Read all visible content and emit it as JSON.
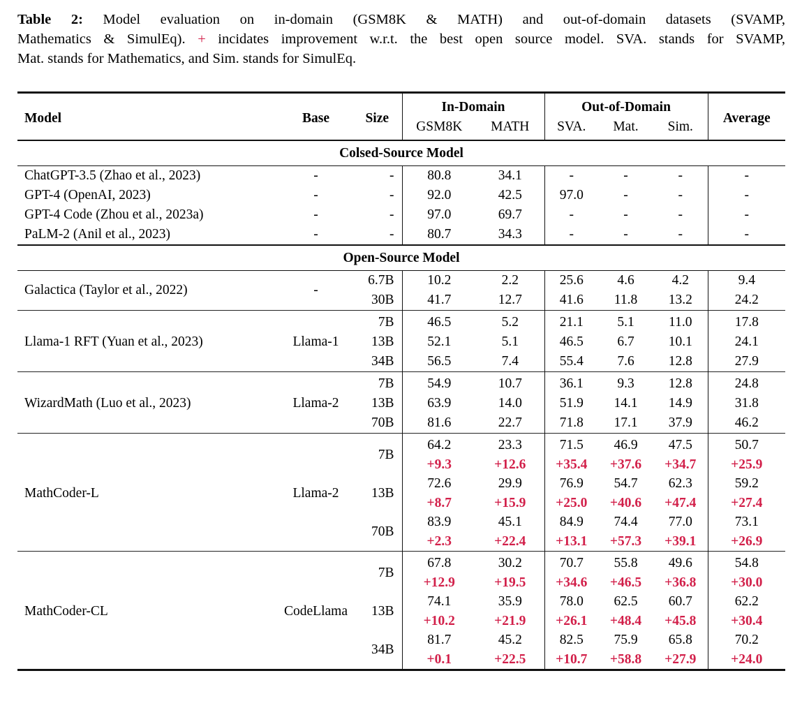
{
  "colors": {
    "improvement": "#d2204a",
    "text": "#000000",
    "rule": "#111111"
  },
  "caption": {
    "label": "Table 2:",
    "line1_rest": "Model evaluation on in-domain (GSM8K & MATH) and out-of-domain datasets (SVAMP,",
    "line2_pre": "Mathematics & SimulEq).",
    "plus": "+",
    "line2_post": "incidates improvement w.r.t. the best open source model. SVA. stands for SVAMP,",
    "line3": "Mat. stands for Mathematics, and Sim. stands for SimulEq."
  },
  "table": {
    "headers": {
      "model": "Model",
      "base": "Base",
      "size": "Size",
      "in_domain": "In-Domain",
      "out_of_domain": "Out-of-Domain",
      "average": "Average",
      "sub": [
        "GSM8K",
        "MATH",
        "SVA.",
        "Mat.",
        "Sim."
      ]
    },
    "sections": [
      {
        "title": "Colsed-Source Model",
        "separators": false,
        "groups": [
          {
            "model": "ChatGPT-3.5 (Zhao et al., 2023)",
            "base": "-",
            "rows": [
              {
                "size": "-",
                "values": [
                  "80.8",
                  "34.1",
                  "-",
                  "-",
                  "-",
                  "-"
                ]
              }
            ]
          },
          {
            "model": "GPT-4 (OpenAI, 2023)",
            "base": "-",
            "rows": [
              {
                "size": "-",
                "values": [
                  "92.0",
                  "42.5",
                  "97.0",
                  "-",
                  "-",
                  "-"
                ]
              }
            ]
          },
          {
            "model": "GPT-4 Code (Zhou et al., 2023a)",
            "base": "-",
            "rows": [
              {
                "size": "-",
                "values": [
                  "97.0",
                  "69.7",
                  "-",
                  "-",
                  "-",
                  "-"
                ]
              }
            ]
          },
          {
            "model": "PaLM-2 (Anil et al., 2023)",
            "base": "-",
            "rows": [
              {
                "size": "-",
                "values": [
                  "80.7",
                  "34.3",
                  "-",
                  "-",
                  "-",
                  "-"
                ]
              }
            ]
          }
        ]
      },
      {
        "title": "Open-Source Model",
        "separators": true,
        "groups": [
          {
            "model": "Galactica (Taylor et al., 2022)",
            "base": "-",
            "rows": [
              {
                "size": "6.7B",
                "values": [
                  "10.2",
                  "2.2",
                  "25.6",
                  "4.6",
                  "4.2",
                  "9.4"
                ]
              },
              {
                "size": "30B",
                "values": [
                  "41.7",
                  "12.7",
                  "41.6",
                  "11.8",
                  "13.2",
                  "24.2"
                ]
              }
            ]
          },
          {
            "model": "Llama-1 RFT (Yuan et al., 2023)",
            "base": "Llama-1",
            "rows": [
              {
                "size": "7B",
                "values": [
                  "46.5",
                  "5.2",
                  "21.1",
                  "5.1",
                  "11.0",
                  "17.8"
                ]
              },
              {
                "size": "13B",
                "values": [
                  "52.1",
                  "5.1",
                  "46.5",
                  "6.7",
                  "10.1",
                  "24.1"
                ]
              },
              {
                "size": "34B",
                "values": [
                  "56.5",
                  "7.4",
                  "55.4",
                  "7.6",
                  "12.8",
                  "27.9"
                ]
              }
            ]
          },
          {
            "model": "WizardMath (Luo et al., 2023)",
            "base": "Llama-2",
            "rows": [
              {
                "size": "7B",
                "values": [
                  "54.9",
                  "10.7",
                  "36.1",
                  "9.3",
                  "12.8",
                  "24.8"
                ]
              },
              {
                "size": "13B",
                "values": [
                  "63.9",
                  "14.0",
                  "51.9",
                  "14.1",
                  "14.9",
                  "31.8"
                ]
              },
              {
                "size": "70B",
                "values": [
                  "81.6",
                  "22.7",
                  "71.8",
                  "17.1",
                  "37.9",
                  "46.2"
                ]
              }
            ]
          },
          {
            "model": "MathCoder-L",
            "base": "Llama-2",
            "rows": [
              {
                "size": "7B",
                "values": [
                  "64.2",
                  "23.3",
                  "71.5",
                  "46.9",
                  "47.5",
                  "50.7"
                ],
                "improvements": [
                  "+9.3",
                  "+12.6",
                  "+35.4",
                  "+37.6",
                  "+34.7",
                  "+25.9"
                ]
              },
              {
                "size": "13B",
                "values": [
                  "72.6",
                  "29.9",
                  "76.9",
                  "54.7",
                  "62.3",
                  "59.2"
                ],
                "improvements": [
                  "+8.7",
                  "+15.9",
                  "+25.0",
                  "+40.6",
                  "+47.4",
                  "+27.4"
                ]
              },
              {
                "size": "70B",
                "values": [
                  "83.9",
                  "45.1",
                  "84.9",
                  "74.4",
                  "77.0",
                  "73.1"
                ],
                "improvements": [
                  "+2.3",
                  "+22.4",
                  "+13.1",
                  "+57.3",
                  "+39.1",
                  "+26.9"
                ]
              }
            ]
          },
          {
            "model": "MathCoder-CL",
            "base": "CodeLlama",
            "rows": [
              {
                "size": "7B",
                "values": [
                  "67.8",
                  "30.2",
                  "70.7",
                  "55.8",
                  "49.6",
                  "54.8"
                ],
                "improvements": [
                  "+12.9",
                  "+19.5",
                  "+34.6",
                  "+46.5",
                  "+36.8",
                  "+30.0"
                ]
              },
              {
                "size": "13B",
                "values": [
                  "74.1",
                  "35.9",
                  "78.0",
                  "62.5",
                  "60.7",
                  "62.2"
                ],
                "improvements": [
                  "+10.2",
                  "+21.9",
                  "+26.1",
                  "+48.4",
                  "+45.8",
                  "+30.4"
                ]
              },
              {
                "size": "34B",
                "values": [
                  "81.7",
                  "45.2",
                  "82.5",
                  "75.9",
                  "65.8",
                  "70.2"
                ],
                "improvements": [
                  "+0.1",
                  "+22.5",
                  "+10.7",
                  "+58.8",
                  "+27.9",
                  "+24.0"
                ]
              }
            ]
          }
        ]
      }
    ]
  }
}
